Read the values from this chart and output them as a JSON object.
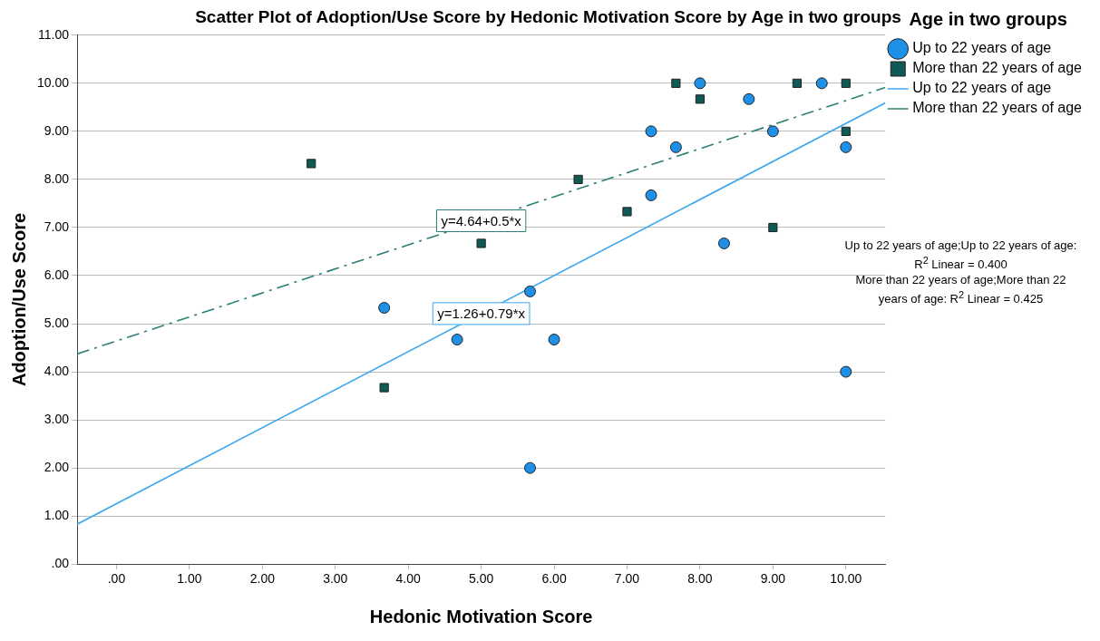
{
  "chart_data": {
    "type": "scatter",
    "title": "Scatter Plot of Adoption/Use Score by Hedonic Motivation Score by Age in two groups",
    "xlabel": "Hedonic Motivation Score",
    "ylabel": "Adoption/Use Score",
    "legend_title": "Age in two groups",
    "xlim": [
      -0.54,
      10.54
    ],
    "ylim": [
      0,
      11
    ],
    "xticks": [
      {
        "value": 0,
        "label": ".00"
      },
      {
        "value": 1,
        "label": "1.00"
      },
      {
        "value": 2,
        "label": "2.00"
      },
      {
        "value": 3,
        "label": "3.00"
      },
      {
        "value": 4,
        "label": "4.00"
      },
      {
        "value": 5,
        "label": "5.00"
      },
      {
        "value": 6,
        "label": "6.00"
      },
      {
        "value": 7,
        "label": "7.00"
      },
      {
        "value": 8,
        "label": "8.00"
      },
      {
        "value": 9,
        "label": "9.00"
      },
      {
        "value": 10,
        "label": "10.00"
      }
    ],
    "yticks": [
      {
        "value": 0,
        "label": ".00"
      },
      {
        "value": 1,
        "label": "1.00"
      },
      {
        "value": 2,
        "label": "2.00"
      },
      {
        "value": 3,
        "label": "3.00"
      },
      {
        "value": 4,
        "label": "4.00"
      },
      {
        "value": 5,
        "label": "5.00"
      },
      {
        "value": 6,
        "label": "6.00"
      },
      {
        "value": 7,
        "label": "7.00"
      },
      {
        "value": 8,
        "label": "8.00"
      },
      {
        "value": 9,
        "label": "9.00"
      },
      {
        "value": 10,
        "label": "10.00"
      },
      {
        "value": 11,
        "label": "11.00"
      }
    ],
    "grid": "y",
    "legend": "top right",
    "series": [
      {
        "name": "Up to 22 years of age",
        "marker": "circle",
        "color": "#1e90e8",
        "x": [
          3.67,
          4.67,
          5.67,
          5.67,
          6.0,
          7.33,
          7.33,
          7.67,
          8.0,
          8.67,
          8.33,
          9.0,
          9.67,
          10.0,
          10.0
        ],
        "values": [
          5.33,
          4.67,
          5.67,
          2.0,
          4.67,
          9.0,
          7.67,
          8.67,
          10.0,
          9.67,
          6.67,
          9.0,
          10.0,
          8.67,
          4.0
        ]
      },
      {
        "name": "More than 22 years of age",
        "marker": "square",
        "color": "#0f5a55",
        "x": [
          2.67,
          3.67,
          5.0,
          6.33,
          7.0,
          7.67,
          8.0,
          9.0,
          9.33,
          10.0,
          10.0
        ],
        "values": [
          8.33,
          3.67,
          6.67,
          8.0,
          7.33,
          10.0,
          9.67,
          7.0,
          10.0,
          10.0,
          9.0
        ]
      },
      {
        "name": "Up to 22 years of age",
        "type": "line",
        "marker": "none",
        "line_style": "solid",
        "color": "#3aa6f0",
        "x": [
          -0.54,
          10.54
        ],
        "values": [
          0.83,
          9.59
        ]
      },
      {
        "name": "More than 22 years of age",
        "type": "line",
        "marker": "none",
        "line_style": "dashed",
        "color": "#2a7f76",
        "x": [
          -0.54,
          10.54
        ],
        "values": [
          4.37,
          9.91
        ]
      }
    ],
    "annotations": [
      {
        "text": "y=1.26+0.79*x",
        "x": 5.0,
        "y": 5.21
      },
      {
        "text": "y=4.64+0.5*x",
        "x": 5.0,
        "y": 7.14
      },
      "Up to 22 years of age;Up to 22 years of age: R$^{2}$ Linear = 0.400",
      "More than 22 years of age;More than 22 years of age: R$^{2}$ Linear = 0.425"
    ]
  }
}
